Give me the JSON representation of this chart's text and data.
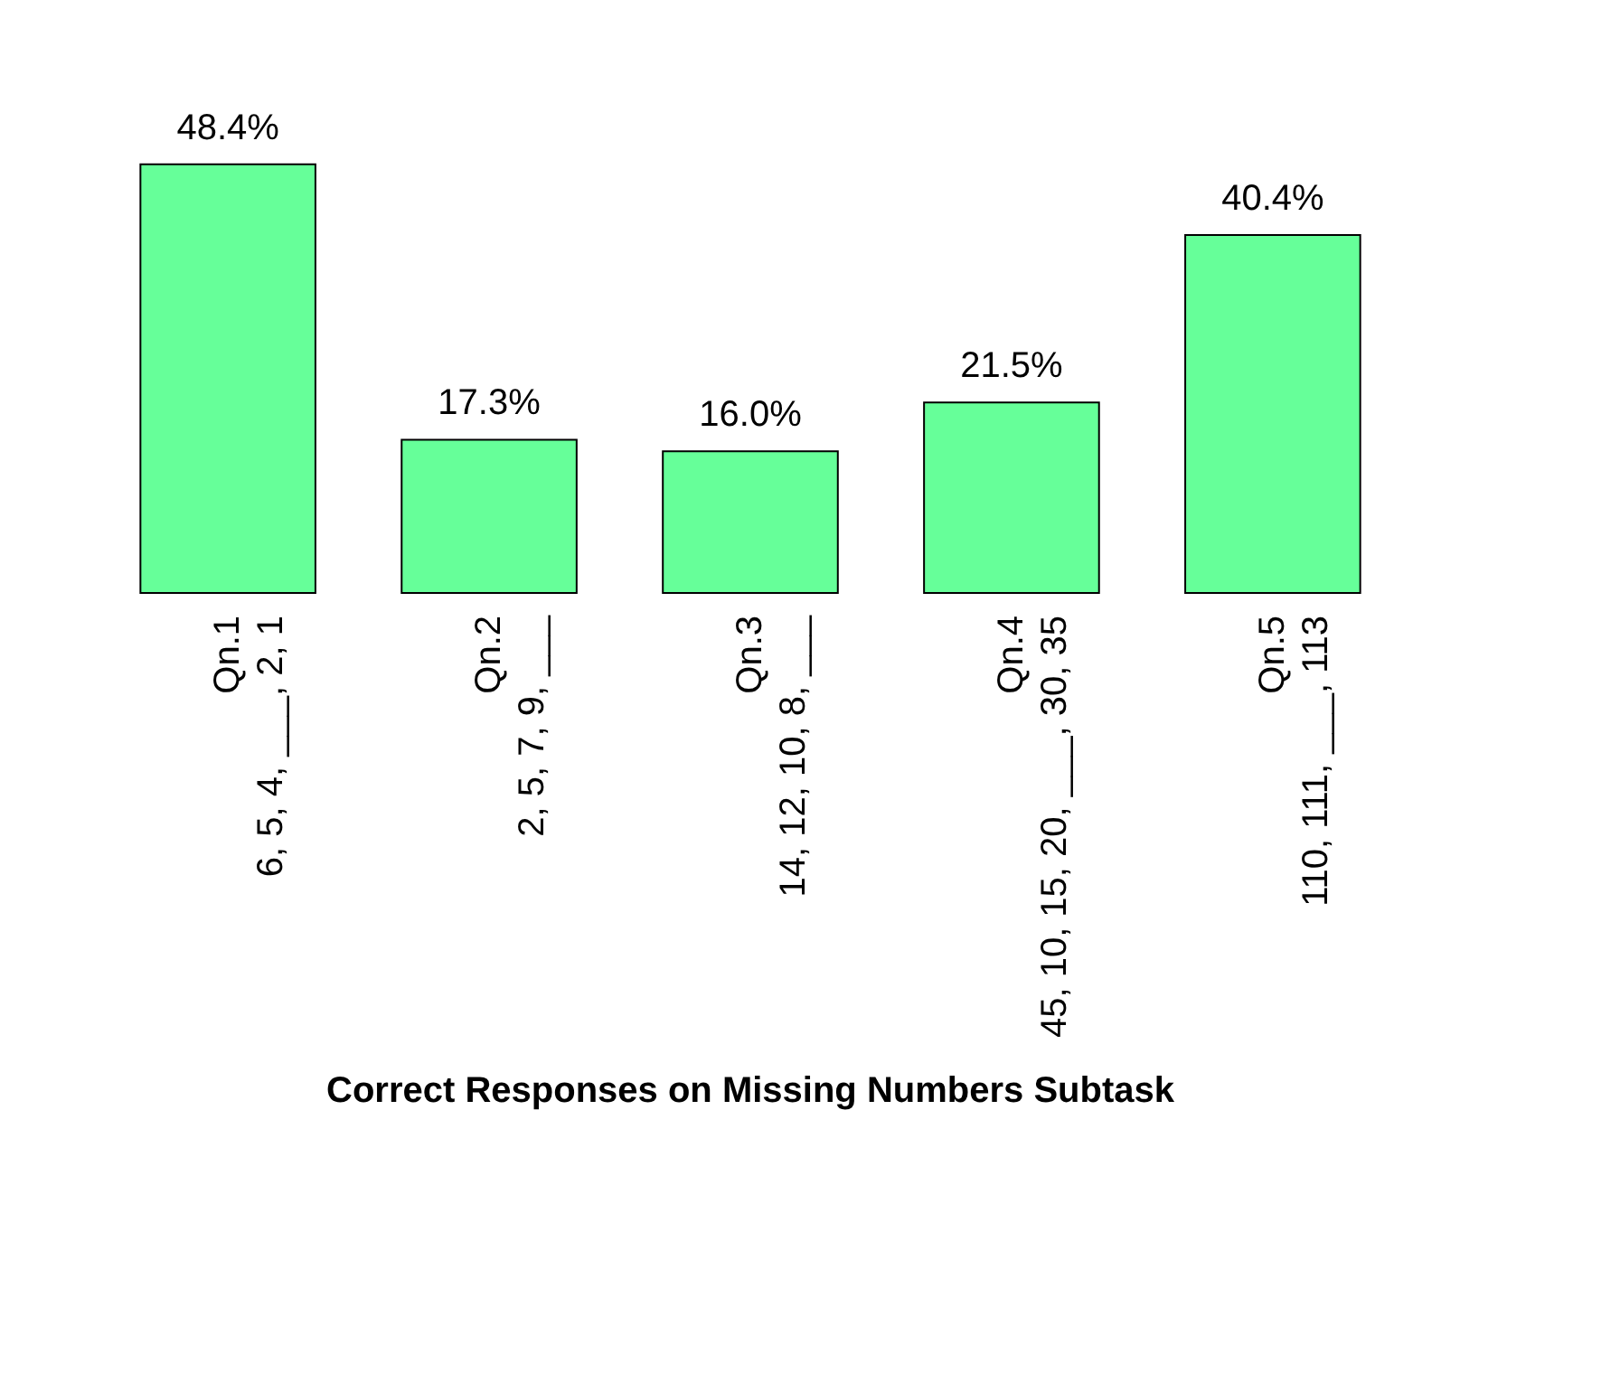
{
  "chart_data": {
    "type": "bar",
    "title": "Correct Responses on Missing Numbers Subtask",
    "categories": [
      "Qn.1\n6, 5, 4, ___, 2, 1",
      "Qn.2\n2, 5, 7, 9, ___",
      "Qn.3\n14, 12, 10, 8, ___",
      "Qn.4\n45, 10, 15, 20, ___, 30, 35",
      "Qn.5\n110, 111, ___, 113"
    ],
    "values": [
      48.4,
      17.3,
      16.0,
      21.5,
      40.4
    ],
    "value_labels": [
      "48.4%",
      "17.3%",
      "16.0%",
      "21.5%",
      "40.4%"
    ],
    "color": "#66ff99"
  }
}
